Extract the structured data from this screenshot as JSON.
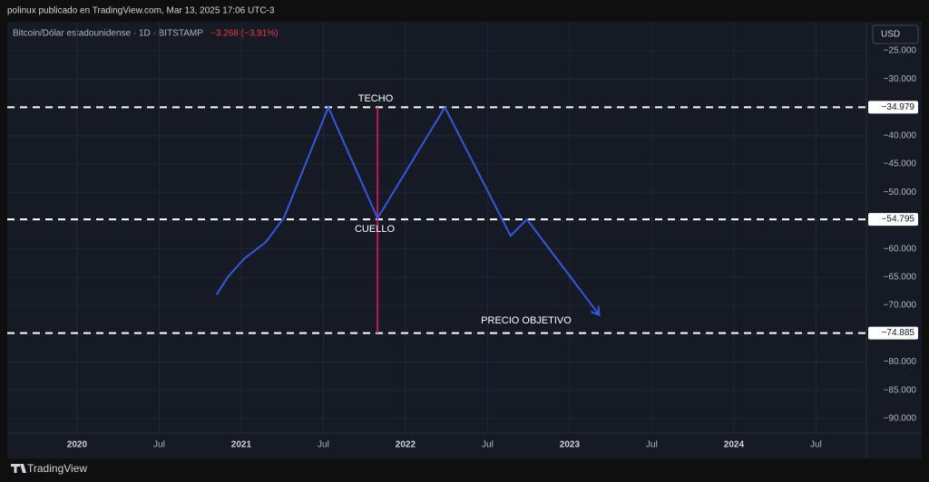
{
  "header": "polinux publicado en TradingView.com, Mar 13, 2025 17:06 UTC-3",
  "footer": "TradingView",
  "chart_data": {
    "type": "line",
    "title": "Bitcoin/Dólar estadounidense · 1D · BITSTAMP",
    "change": "−3.268 (−3,91%)",
    "currency": "USD",
    "x": [
      2020.85,
      2020.92,
      2021.02,
      2021.15,
      2021.26,
      2021.53,
      2021.83,
      2022.24,
      2022.64,
      2022.74,
      2023.18
    ],
    "series": [
      {
        "color": "#3657e0",
        "values": [
          -68100,
          -64900,
          -61700,
          -58800,
          -54500,
          -35000,
          -54600,
          -35000,
          -57700,
          -54800,
          -71700
        ]
      }
    ],
    "levels": [
      {
        "value": -34979,
        "label": "−34.979"
      },
      {
        "value": -54795,
        "label": "−54.795"
      },
      {
        "value": -74885,
        "label": "−74.885"
      }
    ],
    "vertical_line": {
      "x": 2021.83,
      "color": "#c2185b"
    },
    "annotations": [
      "TECHO",
      "CUELLO",
      "PRECIO OBJETIVO"
    ],
    "xlim": [
      2019.575,
      2024.807
    ],
    "xticks": [
      2020,
      {
        "value": 2020.5,
        "label": "Jul"
      },
      2021,
      {
        "value": 2021.5,
        "label": "Jul"
      },
      2022,
      {
        "value": 2022.5,
        "label": "Jul"
      },
      2023,
      {
        "value": 2023.5,
        "label": "Jul"
      },
      2024,
      {
        "value": 2024.5,
        "label": "Jul"
      }
    ],
    "ylim": [
      -92560,
      -23240
    ],
    "yticks": [
      {
        "value": -25000,
        "label": "−25.000"
      },
      {
        "value": -30000,
        "label": "−30.000"
      },
      {
        "value": -35000,
        "label": "−35.000"
      },
      {
        "value": -40000,
        "label": "−40.000"
      },
      {
        "value": -45000,
        "label": "−45.000"
      },
      {
        "value": -50000,
        "label": "−50.000"
      },
      {
        "value": -55000,
        "label": "−55.000"
      },
      {
        "value": -60000,
        "label": "−60.000"
      },
      {
        "value": -65000,
        "label": "−65.000"
      },
      {
        "value": -70000,
        "label": "−70.000"
      },
      {
        "value": -75000,
        "label": "−75.000"
      },
      {
        "value": -80000,
        "label": "−80.000"
      },
      {
        "value": -85000,
        "label": "−85.000"
      },
      {
        "value": -90000,
        "label": "−90.000"
      }
    ],
    "grid": true
  }
}
